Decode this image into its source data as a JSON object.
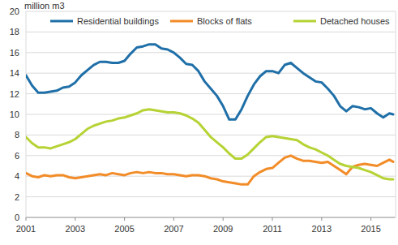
{
  "chart_data": {
    "type": "line",
    "y_label": "million m3",
    "x": [
      2001,
      2001.25,
      2001.5,
      2001.75,
      2002,
      2002.25,
      2002.5,
      2002.75,
      2003,
      2003.25,
      2003.5,
      2003.75,
      2004,
      2004.25,
      2004.5,
      2004.75,
      2005,
      2005.25,
      2005.5,
      2005.75,
      2006,
      2006.25,
      2006.5,
      2006.75,
      2007,
      2007.25,
      2007.5,
      2007.75,
      2008,
      2008.25,
      2008.5,
      2008.75,
      2009,
      2009.25,
      2009.5,
      2009.75,
      2010,
      2010.25,
      2010.5,
      2010.75,
      2011,
      2011.25,
      2011.5,
      2011.75,
      2012,
      2012.25,
      2012.5,
      2012.75,
      2013,
      2013.25,
      2013.5,
      2013.75,
      2014,
      2014.25,
      2014.5,
      2014.75,
      2015,
      2015.25,
      2015.5,
      2015.75,
      2015.9
    ],
    "series": [
      {
        "name": "Residential buildings",
        "color": "#1f6fa8",
        "values": [
          13.8,
          12.8,
          12.1,
          12.1,
          12.2,
          12.3,
          12.6,
          12.7,
          13.1,
          13.8,
          14.3,
          14.8,
          15.1,
          15.1,
          15.0,
          15.0,
          15.2,
          15.9,
          16.5,
          16.6,
          16.8,
          16.8,
          16.4,
          16.3,
          16.0,
          15.5,
          14.9,
          14.8,
          14.2,
          13.2,
          12.5,
          11.8,
          10.8,
          9.5,
          9.5,
          10.5,
          11.8,
          12.9,
          13.7,
          14.2,
          14.2,
          14.0,
          14.8,
          15.0,
          14.5,
          14.0,
          13.6,
          13.2,
          13.1,
          12.5,
          11.8,
          10.8,
          10.3,
          10.8,
          10.7,
          10.5,
          10.6,
          10.1,
          9.7,
          10.1,
          10.0
        ]
      },
      {
        "name": "Blocks of flats",
        "color": "#f28c28",
        "values": [
          4.3,
          4.0,
          3.9,
          4.1,
          4.0,
          4.1,
          4.1,
          3.9,
          3.8,
          3.9,
          4.0,
          4.1,
          4.2,
          4.1,
          4.3,
          4.2,
          4.1,
          4.3,
          4.4,
          4.3,
          4.4,
          4.3,
          4.3,
          4.2,
          4.2,
          4.1,
          4.0,
          4.1,
          4.1,
          4.0,
          3.8,
          3.7,
          3.5,
          3.4,
          3.3,
          3.2,
          3.2,
          4.0,
          4.4,
          4.7,
          4.8,
          5.3,
          5.8,
          6.0,
          5.7,
          5.5,
          5.5,
          5.4,
          5.3,
          5.4,
          5.0,
          4.6,
          4.2,
          4.9,
          5.1,
          5.2,
          5.1,
          5.0,
          5.3,
          5.6,
          5.4
        ]
      },
      {
        "name": "Detached houses",
        "color": "#b5d334",
        "values": [
          7.8,
          7.2,
          6.8,
          6.8,
          6.7,
          6.9,
          7.1,
          7.3,
          7.6,
          8.1,
          8.6,
          8.9,
          9.1,
          9.3,
          9.4,
          9.6,
          9.7,
          9.9,
          10.1,
          10.4,
          10.5,
          10.4,
          10.3,
          10.2,
          10.2,
          10.1,
          9.9,
          9.6,
          9.2,
          8.5,
          7.8,
          7.3,
          6.8,
          6.2,
          5.7,
          5.7,
          6.1,
          6.7,
          7.3,
          7.8,
          7.9,
          7.8,
          7.7,
          7.6,
          7.5,
          7.1,
          6.8,
          6.6,
          6.3,
          6.0,
          5.6,
          5.2,
          5.0,
          4.9,
          4.8,
          4.6,
          4.4,
          4.1,
          3.8,
          3.7,
          3.7
        ]
      }
    ],
    "xlim": [
      2001,
      2016
    ],
    "xticks": [
      2001,
      2003,
      2005,
      2007,
      2009,
      2011,
      2013,
      2015
    ],
    "ylim": [
      0,
      20
    ],
    "yticks": [
      0,
      2,
      4,
      6,
      8,
      10,
      12,
      14,
      16,
      18,
      20
    ],
    "grid": true,
    "legend": "top"
  }
}
